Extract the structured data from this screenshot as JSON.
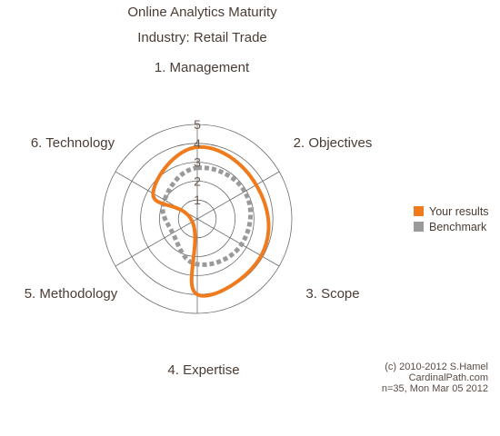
{
  "chart_data": {
    "type": "radar",
    "title": "Online Analytics Maturity",
    "subtitle": "Industry: Retail Trade",
    "axes": [
      "1. Management",
      "2. Objectives",
      "3. Scope",
      "4. Expertise",
      "5. Methodology",
      "6. Technology"
    ],
    "scale": {
      "min": 0,
      "max": 5,
      "ticks": [
        "1",
        "2",
        "3",
        "4",
        "5"
      ]
    },
    "series": [
      {
        "name": "Your results",
        "color": "#f07b1c",
        "values": [
          3.8,
          3.6,
          3.9,
          4.0,
          0.3,
          2.7
        ]
      },
      {
        "name": "Benchmark",
        "color": "#9a9a9a",
        "values": [
          2.7,
          2.9,
          2.7,
          2.4,
          1.5,
          2.0
        ]
      }
    ]
  },
  "credit": {
    "line1": "(c) 2010-2012 S.Hamel",
    "line2": "CardinalPath.com",
    "line3": "n=35, Mon Mar 05 2012"
  }
}
